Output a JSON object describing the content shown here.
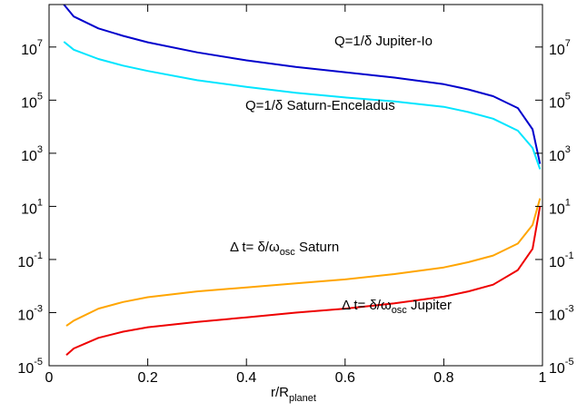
{
  "chart_data": {
    "type": "line",
    "xlabel": {
      "base": "r/R",
      "sub": "planet"
    },
    "xlim": [
      0,
      1
    ],
    "ylim_log10": [
      -5,
      8.6
    ],
    "yscale": "log",
    "grid": false,
    "x_ticks": [
      "0",
      "0.2",
      "0.4",
      "0.6",
      "0.8",
      "1"
    ],
    "x_tick_values": [
      0,
      0.2,
      0.4,
      0.6,
      0.8,
      1
    ],
    "y_ticks": [
      {
        "base": "10",
        "exp": "7",
        "value": 7
      },
      {
        "base": "10",
        "exp": "5",
        "value": 5
      },
      {
        "base": "10",
        "exp": "3",
        "value": 3
      },
      {
        "base": "10",
        "exp": "1",
        "value": 1
      },
      {
        "base": "10",
        "exp": "-1",
        "value": -1
      },
      {
        "base": "10",
        "exp": "-3",
        "value": -3
      },
      {
        "base": "10",
        "exp": "-5",
        "value": -5
      }
    ],
    "series": [
      {
        "name": "Q=1/δ Jupiter-Io",
        "color": "#0000cc",
        "points": [
          [
            0.03,
            8.6
          ],
          [
            0.05,
            8.15
          ],
          [
            0.1,
            7.7
          ],
          [
            0.15,
            7.42
          ],
          [
            0.2,
            7.18
          ],
          [
            0.3,
            6.8
          ],
          [
            0.4,
            6.5
          ],
          [
            0.5,
            6.25
          ],
          [
            0.6,
            6.05
          ],
          [
            0.7,
            5.85
          ],
          [
            0.8,
            5.6
          ],
          [
            0.85,
            5.4
          ],
          [
            0.9,
            5.15
          ],
          [
            0.95,
            4.7
          ],
          [
            0.98,
            3.9
          ],
          [
            0.995,
            2.6
          ]
        ]
      },
      {
        "name": "Q=1/δ Saturn-Enceladus",
        "color": "#00e5ff",
        "points": [
          [
            0.03,
            7.2
          ],
          [
            0.05,
            6.9
          ],
          [
            0.1,
            6.55
          ],
          [
            0.15,
            6.3
          ],
          [
            0.2,
            6.1
          ],
          [
            0.3,
            5.75
          ],
          [
            0.4,
            5.5
          ],
          [
            0.5,
            5.28
          ],
          [
            0.6,
            5.1
          ],
          [
            0.7,
            4.95
          ],
          [
            0.8,
            4.75
          ],
          [
            0.85,
            4.55
          ],
          [
            0.9,
            4.3
          ],
          [
            0.95,
            3.85
          ],
          [
            0.98,
            3.2
          ],
          [
            0.995,
            2.4
          ]
        ]
      },
      {
        "name": "Δt= δ/ω Saturn",
        "color": "#ffa500",
        "points": [
          [
            0.035,
            -3.5
          ],
          [
            0.05,
            -3.3
          ],
          [
            0.1,
            -2.85
          ],
          [
            0.15,
            -2.6
          ],
          [
            0.2,
            -2.42
          ],
          [
            0.3,
            -2.2
          ],
          [
            0.4,
            -2.05
          ],
          [
            0.5,
            -1.9
          ],
          [
            0.6,
            -1.75
          ],
          [
            0.7,
            -1.55
          ],
          [
            0.8,
            -1.3
          ],
          [
            0.85,
            -1.1
          ],
          [
            0.9,
            -0.85
          ],
          [
            0.95,
            -0.4
          ],
          [
            0.98,
            0.3
          ],
          [
            0.995,
            1.3
          ]
        ]
      },
      {
        "name": "Δt= δ/ω Jupiter",
        "color": "#ee0000",
        "points": [
          [
            0.035,
            -4.6
          ],
          [
            0.05,
            -4.35
          ],
          [
            0.1,
            -3.95
          ],
          [
            0.15,
            -3.72
          ],
          [
            0.2,
            -3.55
          ],
          [
            0.3,
            -3.35
          ],
          [
            0.4,
            -3.18
          ],
          [
            0.5,
            -3.0
          ],
          [
            0.6,
            -2.85
          ],
          [
            0.7,
            -2.65
          ],
          [
            0.8,
            -2.4
          ],
          [
            0.85,
            -2.2
          ],
          [
            0.9,
            -1.95
          ],
          [
            0.95,
            -1.4
          ],
          [
            0.98,
            -0.6
          ],
          [
            0.995,
            1.0
          ]
        ]
      }
    ],
    "annotations": [
      {
        "parts": [
          "Q=1/δ Jupiter-Io"
        ]
      },
      {
        "parts": [
          "Q=1/δ Saturn-Enceladus"
        ]
      },
      {
        "pre": "Δ t= δ/ω",
        "sub": "osc",
        "post": " Saturn"
      },
      {
        "pre": "Δ t= δ/ω",
        "sub": "osc",
        "post": " Jupiter"
      }
    ]
  }
}
